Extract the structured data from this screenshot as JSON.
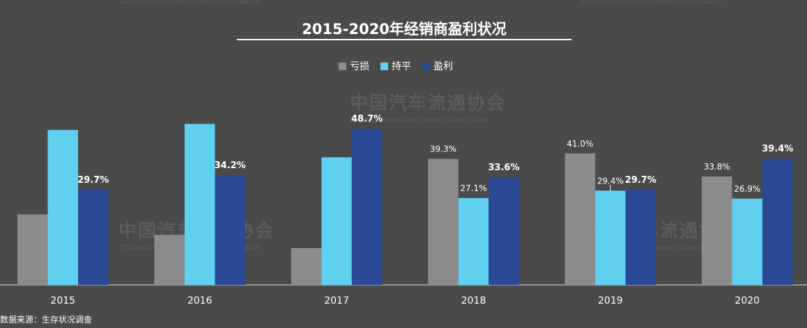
{
  "chart_data": {
    "type": "bar",
    "title": "2015-2020年经销商盈利状况",
    "categories": [
      "2015",
      "2016",
      "2017",
      "2018",
      "2019",
      "2020"
    ],
    "series": [
      {
        "name": "亏损",
        "values": [
          22.0,
          15.6,
          11.5,
          39.3,
          41.0,
          33.8
        ]
      },
      {
        "name": "持平",
        "values": [
          48.3,
          50.2,
          39.8,
          27.1,
          29.4,
          26.9
        ]
      },
      {
        "name": "盈利",
        "values": [
          29.7,
          34.2,
          48.7,
          33.6,
          29.7,
          39.4
        ]
      }
    ],
    "data_labels": [
      [
        "",
        "",
        "29.7%"
      ],
      [
        "",
        "",
        "34.2%"
      ],
      [
        "",
        "",
        "48.7%"
      ],
      [
        "39.3%",
        "27.1%",
        "33.6%"
      ],
      [
        "41.0%",
        "29.4%",
        "29.7%"
      ],
      [
        "33.8%",
        "26.9%",
        "39.4%"
      ]
    ],
    "ylim": [
      0,
      52
    ],
    "grid": false,
    "legend_position": "top-center"
  },
  "colors": {
    "background": "#4a4a4a",
    "loss": "#8c8c8c",
    "flat": "#5fd0f0",
    "profit": "#2b4a96",
    "text": "#ffffff",
    "axis": "#dddddd"
  },
  "source_note": "数据来源：生存状况调查",
  "watermark": {
    "cn": "中国汽车流通协会",
    "en": "China Automobile Dealers Association",
    "logo": "CADA"
  }
}
